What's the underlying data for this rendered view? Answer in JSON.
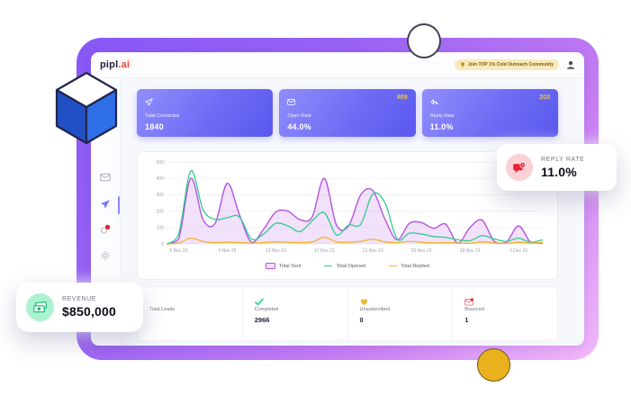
{
  "colors": {
    "frame_gradient_start": "#8757F6",
    "frame_gradient_end": "#F2B9F9",
    "stat_card_purple": "#6E6CF4",
    "badge_gold": "#E9C25E",
    "chart_purple": "#B455E0",
    "chart_green": "#2ECC8F",
    "chart_yellow": "#F0B429",
    "red": "#E8232F",
    "mint": "#AAF2D2",
    "pink": "#FBD0D6",
    "yellow_dot": "#EAB11F"
  },
  "header": {
    "logo_primary": "pipl",
    "logo_accent": ".ai",
    "promo_badge": "Join TOP 1% Cold Outreach Community"
  },
  "sidebar": {
    "items": [
      {
        "icon": "mail-icon",
        "active": false
      },
      {
        "icon": "send-icon",
        "active": true
      },
      {
        "icon": "notifications-icon",
        "active": false,
        "has_red_dot": true
      },
      {
        "icon": "settings-icon",
        "active": false
      }
    ]
  },
  "stat_cards": [
    {
      "icon": "send-icon",
      "label": "Total Contacted",
      "value": "1840",
      "badge": ""
    },
    {
      "icon": "mail-icon",
      "label": "Open Rate",
      "value": "44.0%",
      "badge": "809"
    },
    {
      "icon": "reply-icon",
      "label": "Reply Rate",
      "value": "11.0%",
      "badge": "203"
    }
  ],
  "chart_data": {
    "type": "area",
    "title": "",
    "xlabel": "",
    "ylabel": "",
    "ylim": [
      0,
      500
    ],
    "yticks": [
      0,
      100,
      200,
      300,
      400,
      500
    ],
    "grid": true,
    "legend_position": "bottom",
    "x_tick_indices": [
      1,
      5,
      9,
      13,
      17,
      21,
      25,
      29
    ],
    "x_labels": [
      "5 Nov 23",
      "9 Nov 23",
      "13 Nov 23",
      "17 Nov 23",
      "21 Nov 23",
      "25 Nov 23",
      "29 Nov 23",
      "3 Dec 23"
    ],
    "series": [
      {
        "name": "Total Sent",
        "type": "area",
        "color": "#b455e0",
        "fill": "rgba(196,120,235,0.22)",
        "values": [
          0,
          30,
          400,
          150,
          125,
          370,
          180,
          10,
          90,
          195,
          200,
          148,
          165,
          400,
          115,
          110,
          300,
          325,
          150,
          25,
          125,
          130,
          95,
          120,
          5,
          100,
          145,
          15,
          10,
          110,
          10,
          5
        ]
      },
      {
        "name": "Total Opened",
        "type": "line",
        "color": "#2ecc8f",
        "values": [
          0,
          60,
          445,
          210,
          150,
          160,
          165,
          30,
          60,
          125,
          110,
          75,
          140,
          190,
          55,
          115,
          120,
          305,
          250,
          30,
          65,
          60,
          45,
          40,
          25,
          20,
          50,
          30,
          15,
          35,
          10,
          25
        ]
      },
      {
        "name": "Total Replied",
        "type": "line",
        "color": "#f0b429",
        "values": [
          0,
          5,
          35,
          15,
          8,
          10,
          8,
          5,
          8,
          12,
          10,
          8,
          12,
          40,
          12,
          10,
          15,
          28,
          12,
          8,
          15,
          10,
          6,
          8,
          5,
          4,
          12,
          6,
          4,
          10,
          5,
          8
        ]
      }
    ]
  },
  "bottom_stats": [
    {
      "icon": "",
      "label": "Total Leads",
      "value": ""
    },
    {
      "icon": "check-icon",
      "label": "Completed",
      "value": "2966"
    },
    {
      "icon": "unsubscribed-icon",
      "label": "Unsubscribed",
      "value": "0"
    },
    {
      "icon": "bounced-icon",
      "label": "Bounced",
      "value": "1"
    }
  ],
  "floating": {
    "revenue": {
      "label": "REVENUE",
      "value": "$850,000",
      "icon": "cash-icon"
    },
    "reply_rate": {
      "label": "REPLY RATE",
      "value": "11.0%",
      "icon": "chat-icon"
    }
  }
}
